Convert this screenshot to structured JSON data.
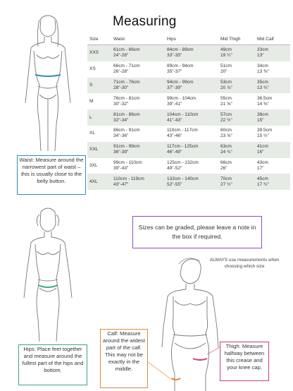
{
  "title": "Measuring",
  "table": {
    "headers": [
      "Size",
      "Waist",
      "Hips",
      "Mid Thigh",
      "Mid Calf"
    ],
    "rows": [
      {
        "size": "XXS",
        "waist_cm": "61cm - 66cm",
        "waist_in": "24\"-26\"",
        "hips_cm": "84cm - 89cm",
        "hips_in": "33\"-35\"",
        "thigh_cm": "49cm",
        "thigh_in": "19 ¼\"",
        "calf_cm": "33cm",
        "calf_in": "13\""
      },
      {
        "size": "XS",
        "waist_cm": "66cm - 71cm",
        "waist_in": "26\"-28\"",
        "hips_cm": "89cm - 94cm",
        "hips_in": "35\"-37\"",
        "thigh_cm": "51cm",
        "thigh_in": "20\"",
        "calf_cm": "34cm",
        "calf_in": "13 ⅜\""
      },
      {
        "size": "S",
        "waist_cm": "71cm - 76cm",
        "waist_in": "28\"-30\"",
        "hips_cm": "94cm - 99cm",
        "hips_in": "37\"-39\"",
        "thigh_cm": "53cm",
        "thigh_in": "20 ⅞\"",
        "calf_cm": "35cm",
        "calf_in": "13 ¾\""
      },
      {
        "size": "M",
        "waist_cm": "76cm - 81cm",
        "waist_in": "30\"-32\"",
        "hips_cm": "99cm - 104cm",
        "hips_in": "39\"-41\"",
        "thigh_cm": "55cm",
        "thigh_in": "21 ⅝\"",
        "calf_cm": "36.5cm",
        "calf_in": "14 ⅜\""
      },
      {
        "size": "L",
        "waist_cm": "81cm - 86cm",
        "waist_in": "32\"-34\"",
        "hips_cm": "104cm - 110cm",
        "hips_in": "41\"-43\"",
        "thigh_cm": "57cm",
        "thigh_in": "22 ½\"",
        "calf_cm": "38cm",
        "calf_in": "15\""
      },
      {
        "size": "XL",
        "waist_cm": "86cm - 91cm",
        "waist_in": "34\"-36\"",
        "hips_cm": "110cm - 117cm",
        "hips_in": "43\"-46\"",
        "thigh_cm": "60cm",
        "thigh_in": "23 ⅝\"",
        "calf_cm": "39.5cm",
        "calf_in": "15 ½\""
      },
      {
        "size": "XXL",
        "waist_cm": "91cm - 99cm",
        "waist_in": "36\"-39\"",
        "hips_cm": "117cm - 125cm",
        "hips_in": "46\"-49\"",
        "thigh_cm": "63cm",
        "thigh_in": "24 ¾\"",
        "calf_cm": "41cm",
        "calf_in": "16\""
      },
      {
        "size": "3XL",
        "waist_cm": "99cm - 110cm",
        "waist_in": "39\"-43\"",
        "hips_cm": "125cm - 132cm",
        "hips_in": "49\"-52\"",
        "thigh_cm": "66cm",
        "thigh_in": "26\"",
        "calf_cm": "43cm",
        "calf_in": "17\""
      },
      {
        "size": "4XL",
        "waist_cm": "110cm - 119cm",
        "waist_in": "43\"-47\"",
        "hips_cm": "132cm - 140cm",
        "hips_in": "52\"-55\"",
        "thigh_cm": "70cm",
        "thigh_in": "27 ½\"",
        "calf_cm": "45cm",
        "calf_in": "17 ¾\""
      }
    ]
  },
  "notes": {
    "waist": "Waist: Measure around the narrowest part of waist – this is usually close to the belly button.",
    "hips": "Hips: Place feet together and measure around the fullest part of the hips and bottom.",
    "calf": "Calf: Measure around the widest part of the calf. This may not be exactly in the middle.",
    "thigh": "Thigh: Measure halfway between this crease and your knee cap.",
    "grading": "Sizes can be graded, please leave a note in the box if required.",
    "always": "ALWAYS use measurements when choosing which size"
  },
  "colors": {
    "waist": "#2a8fb3",
    "hips": "#3aa87a",
    "calf": "#e08a3a",
    "thigh": "#cc3f6b",
    "grading": "#8a4fc0",
    "row_shade": "#e6ebe6"
  }
}
